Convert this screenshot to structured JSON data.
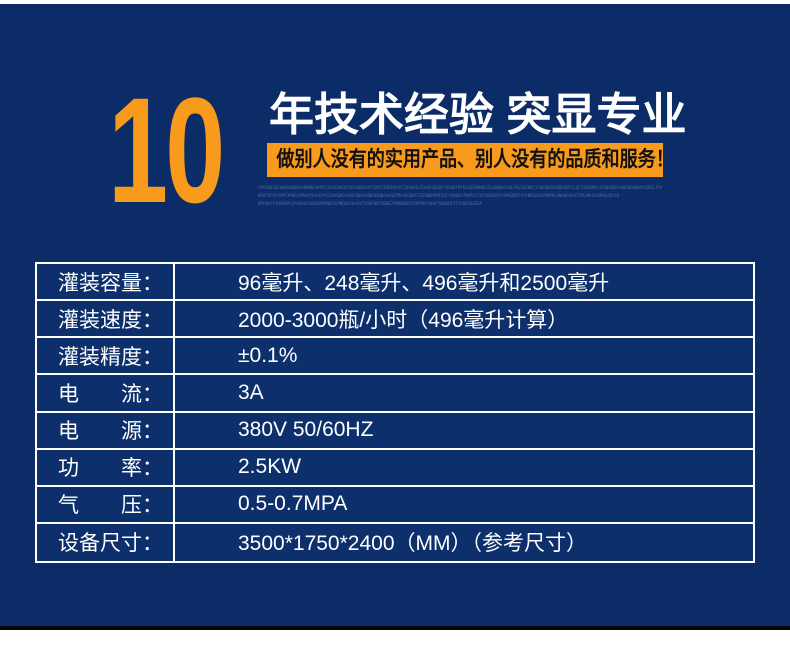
{
  "header": {
    "big_number": "10",
    "headline": "年技术经验 突显专业",
    "banner_slogan": "做别人没有的实用产品、别人没有的品质和服务！",
    "fine_print": [
      "CMXSDDSOCHWSGBHBERAONBKSHMVSCXSEEHVOPZ8COSB02HYSSORTZ4REBYVCJ2K04RLZCHXV2DE8FYHSUDFMYHJ4EBSMHDFZ6LBNUHCX0LPGU3K2NKCYIHEOB84GEBKXBY2L4CYX6EBNVCO2WKEDBY4HEBOX8BHP4ZEELIYAPOKD4WNBSHXBEBY4HEB",
      "KEWTBYGF9VMY3MBG2PMA4PSGV4AYSZX9A08DV4BGSBHSPWBEBSNBAO4G8TMA4RGBW4TZESNBRPMF2DFYAOBEP7RHPGJT9CXD8GODY4VM8ZBOT4Y4NBSOE8YMHO8GVNABSUPATO9U4MHYGBMAOZBY4G",
      "BPLMAYVTH4PEPU3PAVRGUSOBSBERMBO3UPNOE9I84SVTVPB5WBTGB8E2PVMNBSBTVQPEM4TWHATSKBGBT4TSSMZSOEBSA"
    ]
  },
  "spec_table": {
    "rows": [
      {
        "label": "灌装容量：",
        "value": "96毫升、248毫升、496毫升和2500毫升"
      },
      {
        "label": "灌装速度：",
        "value": "2000-3000瓶/小时（496毫升计算）"
      },
      {
        "label": "灌装精度：",
        "value": "±0.1%"
      },
      {
        "label": "电　　流：",
        "value": "3A"
      },
      {
        "label": "电　　源：",
        "value": "380V 50/60HZ"
      },
      {
        "label": "功　　率：",
        "value": "2.5KW"
      },
      {
        "label": "气　　压：",
        "value": "0.5-0.7MPA"
      },
      {
        "label": "设备尺寸：",
        "value": "3500*1750*2400（MM）（参考尺寸）"
      }
    ]
  },
  "colors": {
    "page_background": "#ffffff",
    "panel_navy": "#0b2c66",
    "table_cell_navy": "#0d2f6b",
    "accent_orange": "#f89b1d",
    "banner_text": "#111111",
    "table_border": "#ffffff",
    "fine_print_blue": "#4a6aa8",
    "bottom_strip_black": "#050505"
  }
}
